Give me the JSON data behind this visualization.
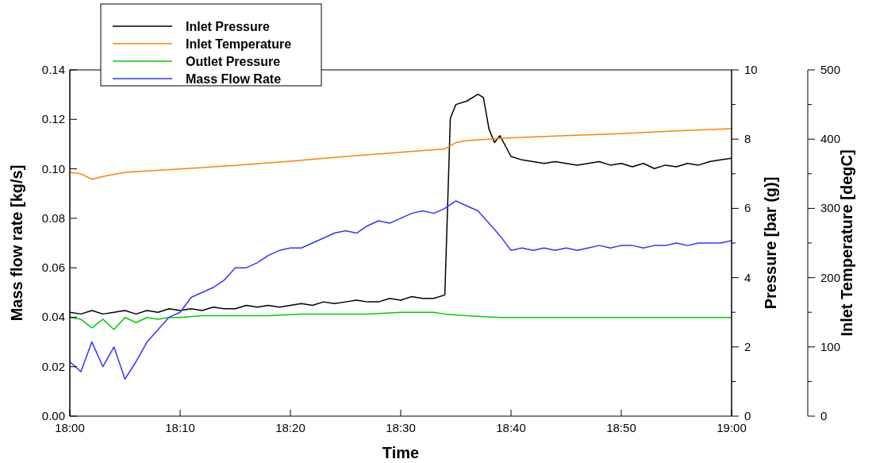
{
  "chart_data": {
    "type": "line",
    "xlabel": "Time",
    "ylabel": "Mass flow rate [kg/s]",
    "y2label": "Pressure [bar (g)]",
    "y3label": "Inlet Temperature [degC]",
    "xlim": [
      18,
      19
    ],
    "xticks": [
      {
        "value": 18,
        "label": "18:00"
      },
      {
        "value": 18.1667,
        "label": "18:10"
      },
      {
        "value": 18.3333,
        "label": "18:20"
      },
      {
        "value": 18.5,
        "label": "18:30"
      },
      {
        "value": 18.6667,
        "label": "18:40"
      },
      {
        "value": 18.8333,
        "label": "18:50"
      },
      {
        "value": 19,
        "label": "19:00"
      }
    ],
    "ylim": [
      0,
      0.14
    ],
    "yticks": [
      {
        "value": 0,
        "label": "0.00"
      },
      {
        "value": 0.02,
        "label": "0.02"
      },
      {
        "value": 0.04,
        "label": "0.04"
      },
      {
        "value": 0.06,
        "label": "0.06"
      },
      {
        "value": 0.08,
        "label": "0.08"
      },
      {
        "value": 0.1,
        "label": "0.10"
      },
      {
        "value": 0.12,
        "label": "0.12"
      },
      {
        "value": 0.14,
        "label": "0.14"
      }
    ],
    "y2lim": [
      0,
      10
    ],
    "y2ticks": [
      0,
      {
        "value": 1,
        "label": null
      },
      2,
      {
        "value": 3,
        "label": null
      },
      4,
      {
        "value": 5,
        "label": null
      },
      6,
      {
        "value": 7,
        "label": null
      },
      8,
      {
        "value": 9,
        "label": null
      },
      10
    ],
    "y3lim": [
      0,
      500
    ],
    "y3ticks": [
      0,
      {
        "value": 50,
        "label": null
      },
      100,
      {
        "value": 150,
        "label": null
      },
      200,
      {
        "value": 250,
        "label": null
      },
      300,
      {
        "value": 350,
        "label": null
      },
      400,
      {
        "value": 450,
        "label": null
      },
      500
    ],
    "legend": "top left",
    "grid": false,
    "line_style": "solid",
    "series": [
      {
        "name": "Inlet Pressure",
        "color": "#000000",
        "axis": "y2",
        "x": [
          18,
          18.0167,
          18.0333,
          18.05,
          18.0667,
          18.0833,
          18.1,
          18.1167,
          18.1333,
          18.15,
          18.1667,
          18.1833,
          18.2,
          18.2167,
          18.2333,
          18.25,
          18.2667,
          18.2833,
          18.3,
          18.3167,
          18.3333,
          18.35,
          18.3667,
          18.3833,
          18.4,
          18.4167,
          18.4333,
          18.45,
          18.4667,
          18.4833,
          18.5,
          18.5167,
          18.5333,
          18.55,
          18.5667,
          18.575,
          18.5833,
          18.6,
          18.6167,
          18.625,
          18.6333,
          18.6417,
          18.65,
          18.6667,
          18.6833,
          18.7,
          18.7167,
          18.7333,
          18.75,
          18.7667,
          18.7833,
          18.8,
          18.8167,
          18.8333,
          18.85,
          18.8667,
          18.8833,
          18.9,
          18.9167,
          18.9333,
          18.95,
          18.9667,
          18.9833,
          19
        ],
        "values": [
          3.0,
          2.95,
          3.05,
          2.95,
          3.0,
          3.05,
          2.95,
          3.05,
          3.0,
          3.1,
          3.05,
          3.1,
          3.05,
          3.15,
          3.1,
          3.1,
          3.2,
          3.15,
          3.2,
          3.15,
          3.2,
          3.25,
          3.2,
          3.3,
          3.25,
          3.3,
          3.35,
          3.3,
          3.3,
          3.4,
          3.35,
          3.45,
          3.4,
          3.4,
          3.5,
          8.6,
          9.0,
          9.1,
          9.3,
          9.2,
          8.3,
          7.9,
          8.1,
          7.5,
          7.4,
          7.35,
          7.3,
          7.35,
          7.3,
          7.25,
          7.3,
          7.35,
          7.25,
          7.3,
          7.2,
          7.3,
          7.15,
          7.25,
          7.2,
          7.3,
          7.25,
          7.35,
          7.4,
          7.45
        ]
      },
      {
        "name": "Inlet Temperature",
        "color": "#ff8000",
        "axis": "y3",
        "x": [
          18,
          18.0167,
          18.0333,
          18.05,
          18.0833,
          18.1667,
          18.25,
          18.3333,
          18.4167,
          18.5,
          18.5667,
          18.5833,
          18.6,
          18.6667,
          18.75,
          18.8333,
          18.9167,
          19
        ],
        "values": [
          352,
          350,
          342,
          346,
          352,
          357,
          362,
          368,
          375,
          381,
          386,
          395,
          398,
          402,
          405,
          408,
          412,
          415
        ]
      },
      {
        "name": "Outlet Pressure",
        "color": "#00cc00",
        "axis": "y2",
        "x": [
          18,
          18.0167,
          18.0333,
          18.05,
          18.0667,
          18.0833,
          18.1,
          18.1167,
          18.1333,
          18.15,
          18.1667,
          18.2,
          18.25,
          18.3,
          18.35,
          18.4,
          18.45,
          18.5,
          18.55,
          18.5667,
          18.6,
          18.65,
          18.7,
          18.75,
          18.8,
          18.85,
          18.9,
          18.95,
          19
        ],
        "values": [
          2.85,
          2.8,
          2.55,
          2.8,
          2.5,
          2.85,
          2.7,
          2.85,
          2.8,
          2.85,
          2.85,
          2.9,
          2.9,
          2.9,
          2.95,
          2.95,
          2.95,
          3.0,
          3.0,
          2.95,
          2.9,
          2.85,
          2.85,
          2.85,
          2.85,
          2.85,
          2.85,
          2.85,
          2.85
        ]
      },
      {
        "name": "Mass Flow Rate",
        "color": "#3333ff",
        "x": [
          18,
          18.0167,
          18.0333,
          18.05,
          18.0667,
          18.0833,
          18.1,
          18.1167,
          18.1333,
          18.15,
          18.1667,
          18.1833,
          18.2,
          18.2167,
          18.2333,
          18.25,
          18.2667,
          18.2833,
          18.3,
          18.3167,
          18.3333,
          18.35,
          18.3667,
          18.3833,
          18.4,
          18.4167,
          18.4333,
          18.45,
          18.4667,
          18.4833,
          18.5,
          18.5167,
          18.5333,
          18.55,
          18.5667,
          18.5833,
          18.6,
          18.6167,
          18.6333,
          18.65,
          18.6667,
          18.6833,
          18.7,
          18.7167,
          18.7333,
          18.75,
          18.7667,
          18.7833,
          18.8,
          18.8167,
          18.8333,
          18.85,
          18.8667,
          18.8833,
          18.9,
          18.9167,
          18.9333,
          18.95,
          18.9667,
          18.9833,
          19
        ],
        "values": [
          0.022,
          0.018,
          0.03,
          0.02,
          0.028,
          0.015,
          0.022,
          0.03,
          0.035,
          0.04,
          0.042,
          0.048,
          0.05,
          0.052,
          0.055,
          0.06,
          0.06,
          0.062,
          0.065,
          0.067,
          0.068,
          0.068,
          0.07,
          0.072,
          0.074,
          0.075,
          0.074,
          0.077,
          0.079,
          0.078,
          0.08,
          0.082,
          0.083,
          0.082,
          0.084,
          0.087,
          0.085,
          0.083,
          0.078,
          0.073,
          0.067,
          0.068,
          0.067,
          0.068,
          0.067,
          0.068,
          0.067,
          0.068,
          0.069,
          0.068,
          0.069,
          0.069,
          0.068,
          0.069,
          0.069,
          0.07,
          0.069,
          0.07,
          0.07,
          0.07,
          0.071
        ]
      }
    ]
  }
}
